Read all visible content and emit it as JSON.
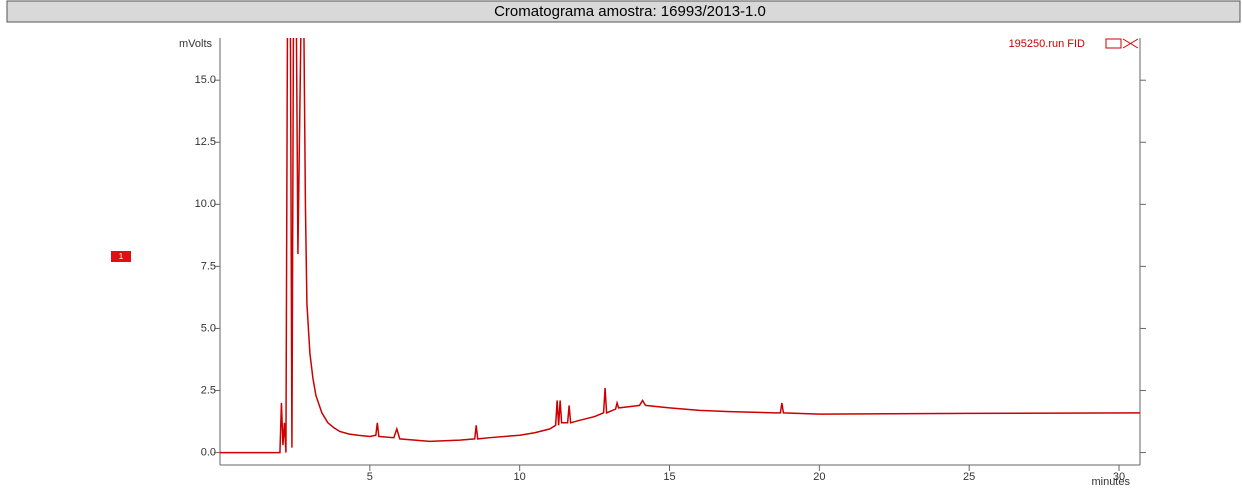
{
  "chart_data": {
    "type": "line",
    "title": "Cromatograma amostra: 16993/2013-1.0",
    "y_label": "mVolts",
    "x_label": "minutes",
    "trace_label": "195250.run FID",
    "marker_label": "1",
    "xlim": [
      0,
      30.7
    ],
    "ylim": [
      -0.5,
      16.7
    ],
    "xticks": [
      5,
      10,
      15,
      20,
      25,
      30
    ],
    "yticks": [
      {
        "value": 0,
        "label": "0.0"
      },
      2.5,
      {
        "value": 5,
        "label": "5.0"
      },
      7.5,
      {
        "value": 10,
        "label": "10.0"
      },
      12.5,
      {
        "value": 15,
        "label": "15.0"
      }
    ],
    "x": [
      0,
      2.0,
      2.05,
      2.1,
      2.15,
      2.2,
      2.25,
      2.35,
      2.4,
      2.45,
      2.55,
      2.6,
      2.7,
      2.8,
      2.85,
      2.9,
      3.0,
      3.1,
      3.2,
      3.4,
      3.6,
      3.8,
      4.0,
      4.3,
      4.6,
      5.0,
      5.2,
      5.25,
      5.3,
      5.8,
      5.9,
      6.0,
      6.5,
      7.0,
      8.0,
      8.5,
      8.55,
      8.6,
      9.0,
      10.0,
      10.5,
      11.0,
      11.2,
      11.25,
      11.3,
      11.35,
      11.4,
      11.6,
      11.65,
      11.7,
      12.0,
      12.5,
      12.8,
      12.85,
      12.9,
      13.2,
      13.25,
      13.3,
      14.0,
      14.1,
      14.2,
      15.0,
      16.0,
      17.0,
      18.5,
      18.7,
      18.75,
      18.8,
      20.0,
      25.0,
      30.7
    ],
    "series": [
      {
        "name": "195250.run FID",
        "color": "#cc0000",
        "values": [
          0,
          0,
          2.0,
          0.3,
          1.2,
          0,
          17,
          17,
          0.2,
          17,
          17,
          8,
          17,
          17,
          10,
          6,
          4,
          3,
          2.3,
          1.6,
          1.2,
          1.0,
          0.85,
          0.75,
          0.7,
          0.65,
          0.7,
          1.2,
          0.65,
          0.6,
          0.95,
          0.55,
          0.5,
          0.45,
          0.5,
          0.55,
          1.1,
          0.55,
          0.6,
          0.7,
          0.8,
          0.95,
          1.1,
          2.1,
          1.1,
          2.1,
          1.2,
          1.2,
          1.9,
          1.2,
          1.3,
          1.45,
          1.6,
          2.6,
          1.6,
          1.75,
          2.0,
          1.8,
          1.9,
          2.1,
          1.9,
          1.8,
          1.7,
          1.65,
          1.6,
          1.6,
          2.0,
          1.6,
          1.55,
          1.58,
          1.6
        ]
      }
    ]
  }
}
